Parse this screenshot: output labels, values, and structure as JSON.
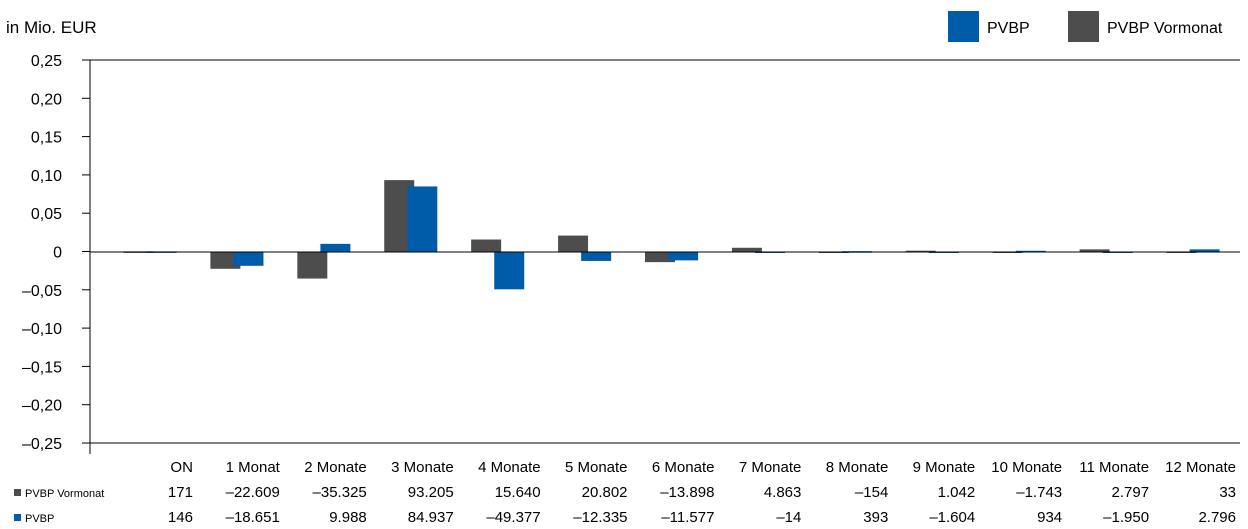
{
  "chart_data": {
    "type": "bar",
    "unit_label": "in Mio. EUR",
    "categories": [
      "ON",
      "1 Monat",
      "2 Monate",
      "3 Monate",
      "4 Monate",
      "5 Monate",
      "6 Monate",
      "7 Monate",
      "8 Monate",
      "9 Monate",
      "10 Monate",
      "11 Monate",
      "12 Monate"
    ],
    "ylim": [
      -0.25,
      0.25
    ],
    "yticks": [
      0.25,
      0.2,
      0.15,
      0.1,
      0.05,
      0,
      -0.05,
      -0.1,
      -0.15,
      -0.2,
      -0.25
    ],
    "ytick_labels": [
      "0,25",
      "0,20",
      "0,15",
      "0,10",
      "0,05",
      "0",
      "–0,05",
      "–0,10",
      "–0,15",
      "–0,20",
      "–0,25"
    ],
    "legend_position": "top-right",
    "series": [
      {
        "name": "PVBP Vormonat",
        "color": "#4d4d4d",
        "values": [
          0.000171,
          -0.022609,
          -0.035325,
          0.093205,
          0.01564,
          0.020802,
          -0.013898,
          0.004863,
          -0.000154,
          0.001042,
          -0.001743,
          0.002797,
          3.3e-05
        ],
        "labels": [
          "171",
          "–22.609",
          "–35.325",
          "93.205",
          "15.640",
          "20.802",
          "–13.898",
          "4.863",
          "–154",
          "1.042",
          "–1.743",
          "2.797",
          "33"
        ]
      },
      {
        "name": "PVBP",
        "color": "#005ca9",
        "values": [
          0.000146,
          -0.018651,
          0.009988,
          0.084937,
          -0.049377,
          -0.012335,
          -0.011577,
          -1.4e-05,
          0.000393,
          -0.001604,
          0.000934,
          -0.00195,
          0.002796
        ],
        "labels": [
          "146",
          "–18.651",
          "9.988",
          "84.937",
          "–49.377",
          "–12.335",
          "–11.577",
          "–14",
          "393",
          "–1.604",
          "934",
          "–1.950",
          "2.796"
        ]
      }
    ]
  }
}
